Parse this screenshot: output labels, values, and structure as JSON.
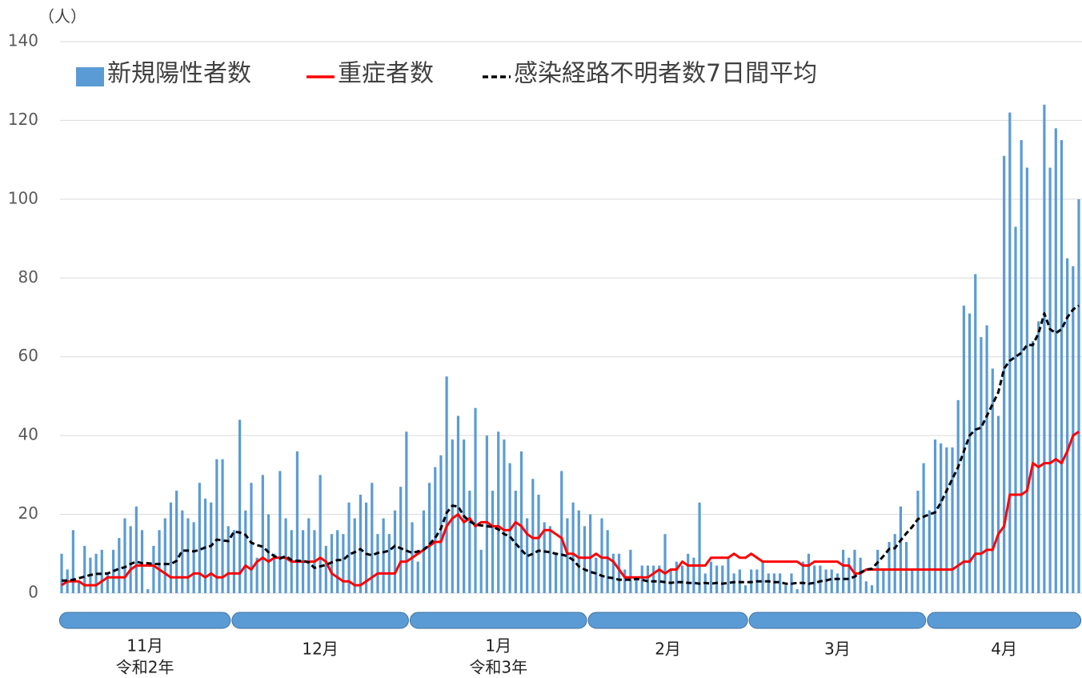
{
  "chart_data": {
    "type": "bar",
    "y_axis_label": "（人）",
    "ylim": [
      0,
      140
    ],
    "yticks": [
      0,
      20,
      40,
      60,
      80,
      100,
      120,
      140
    ],
    "grid": true,
    "legend_position": "top",
    "x_groups": [
      {
        "label": "11月",
        "sublabel": "令和2年"
      },
      {
        "label": "12月"
      },
      {
        "label": "1月",
        "sublabel": "令和3年"
      },
      {
        "label": "2月"
      },
      {
        "label": "3月"
      },
      {
        "label": "4月"
      }
    ],
    "group_color": "#5b9bd5",
    "categories": [
      null,
      null,
      null,
      null,
      null,
      null,
      null,
      null,
      null,
      null,
      null,
      null,
      null,
      null,
      null,
      null,
      null,
      null,
      null,
      null,
      null,
      null,
      null,
      null,
      null,
      null,
      null,
      null,
      null,
      null,
      null,
      null,
      null,
      null,
      null,
      null,
      null,
      null,
      null,
      null,
      null,
      null,
      null,
      null,
      null,
      null,
      null,
      null,
      null,
      null,
      null,
      null,
      null,
      null,
      null,
      null,
      null,
      null,
      null,
      null,
      null,
      null,
      null,
      null,
      null,
      null,
      null,
      null,
      null,
      null,
      null,
      null,
      null,
      null,
      null,
      null,
      null,
      null,
      null,
      null,
      null,
      null,
      null,
      null,
      null,
      null,
      null,
      null,
      null,
      null,
      null,
      null,
      null,
      null,
      null,
      null,
      null,
      null,
      null,
      null,
      null,
      null,
      null,
      null,
      null,
      null,
      null,
      null,
      null,
      null,
      null,
      null,
      null,
      null,
      null,
      null,
      null,
      null,
      null,
      null,
      null,
      null,
      null,
      null,
      null,
      null,
      null,
      null,
      null,
      null,
      null,
      null,
      null,
      null,
      null,
      null,
      null,
      null,
      null,
      null,
      null,
      null,
      null,
      null,
      null,
      null,
      null,
      null,
      null,
      null,
      null,
      null,
      null,
      null,
      null,
      null,
      null,
      null,
      null,
      null,
      null,
      null,
      null,
      null,
      null,
      null,
      null,
      null,
      null,
      null,
      null,
      null,
      null,
      null,
      null,
      null,
      null,
      null
    ],
    "series": [
      {
        "name": "新規陽性者数",
        "type": "bar",
        "color": "#5b9bd5",
        "values": [
          10,
          6,
          16,
          3,
          12,
          9,
          10,
          11,
          5,
          11,
          14,
          19,
          17,
          22,
          16,
          1,
          12,
          16,
          19,
          23,
          26,
          21,
          19,
          18,
          28,
          24,
          23,
          34,
          34,
          17,
          16,
          44,
          21,
          28,
          9,
          30,
          20,
          10,
          31,
          19,
          16,
          36,
          16,
          19,
          16,
          30,
          12,
          15,
          16,
          15,
          23,
          19,
          25,
          23,
          28,
          15,
          19,
          15,
          21,
          27,
          41,
          18,
          8,
          21,
          28,
          32,
          35,
          55,
          39,
          45,
          39,
          26,
          47,
          11,
          40,
          26,
          41,
          39,
          33,
          26,
          36,
          19,
          29,
          25,
          18,
          17,
          10,
          31,
          19,
          23,
          21,
          17,
          20,
          9,
          19,
          16,
          10,
          10,
          6,
          11,
          4,
          7,
          7,
          7,
          7,
          15,
          6,
          8,
          7,
          10,
          9,
          23,
          5,
          8,
          7,
          7,
          9,
          5,
          6,
          2,
          6,
          6,
          8,
          5,
          5,
          5,
          2,
          5,
          1,
          8,
          10,
          7,
          7,
          6,
          6,
          5,
          11,
          9,
          11,
          9,
          3,
          2,
          11,
          6,
          13,
          15,
          22,
          13,
          6,
          26,
          33,
          21,
          39,
          38,
          37,
          37,
          49,
          73,
          71,
          81,
          65,
          68,
          57,
          45,
          111,
          122,
          93,
          115,
          108,
          64,
          69,
          124,
          108,
          118,
          115,
          85,
          83,
          100
        ]
      },
      {
        "name": "重症者数",
        "type": "line",
        "color": "#ff0000",
        "values": [
          2,
          3,
          3,
          3,
          2,
          2,
          2,
          3,
          4,
          4,
          4,
          4,
          6,
          7,
          7,
          7,
          7,
          6,
          5,
          4,
          4,
          4,
          4,
          5,
          5,
          4,
          5,
          4,
          4,
          5,
          5,
          5,
          7,
          6,
          8,
          9,
          8,
          9,
          9,
          9,
          8,
          8,
          8,
          8,
          8,
          9,
          8,
          5,
          4,
          3,
          3,
          2,
          2,
          3,
          4,
          5,
          5,
          5,
          5,
          8,
          8,
          9,
          10,
          11,
          12,
          13,
          13,
          17,
          19,
          20,
          18,
          19,
          17,
          18,
          18,
          17,
          17,
          16,
          16,
          18,
          17,
          15,
          14,
          14,
          16,
          16,
          15,
          14,
          10,
          10,
          9,
          9,
          9,
          10,
          9,
          9,
          8,
          6,
          4,
          4,
          4,
          4,
          4,
          5,
          6,
          5,
          6,
          6,
          8,
          7,
          7,
          7,
          7,
          9,
          9,
          9,
          9,
          10,
          9,
          9,
          10,
          9,
          8,
          8,
          8,
          8,
          8,
          8,
          8,
          7,
          7,
          8,
          8,
          8,
          8,
          8,
          7,
          7,
          5,
          5,
          6,
          6,
          6,
          6,
          6,
          6,
          6,
          6,
          6,
          6,
          6,
          6,
          6,
          6,
          6,
          6,
          7,
          8,
          8,
          10,
          10,
          11,
          11,
          15,
          17,
          25,
          25,
          25,
          26,
          33,
          32,
          33,
          33,
          34,
          33,
          36,
          40,
          41
        ]
      },
      {
        "name": "感染経路不明者数7日間平均",
        "type": "line",
        "dashed": true,
        "color": "#000000",
        "values": [
          3.2,
          3.2,
          3.4,
          3.8,
          4.2,
          4.6,
          4.9,
          4.9,
          5.0,
          5.6,
          6.2,
          6.6,
          7.4,
          8.0,
          7.6,
          7.6,
          7.4,
          7.4,
          7.4,
          7.4,
          8.2,
          10.8,
          10.8,
          10.6,
          11.0,
          11.6,
          12.0,
          13.6,
          13.4,
          13.2,
          15.6,
          15.4,
          14.8,
          12.8,
          12.2,
          11.8,
          10.4,
          9.4,
          8.8,
          9.4,
          8.4,
          8.2,
          8.2,
          7.8,
          6.4,
          6.8,
          7.2,
          7.8,
          8.4,
          8.4,
          9.8,
          10.4,
          11.2,
          10.0,
          9.6,
          10.2,
          10.4,
          10.8,
          12.0,
          11.4,
          10.8,
          10.2,
          10.6,
          11.0,
          12.4,
          14.0,
          16.4,
          20.4,
          22.2,
          22.0,
          19.6,
          18.2,
          17.4,
          17.2,
          17.0,
          16.8,
          16.2,
          15.0,
          14.4,
          12.6,
          11.0,
          9.4,
          10.0,
          10.8,
          10.6,
          10.4,
          10.0,
          9.8,
          9.4,
          8.4,
          6.8,
          6.0,
          5.4,
          5.0,
          4.4,
          4.0,
          3.8,
          3.4,
          3.4,
          3.4,
          3.6,
          3.4,
          3.0,
          3.0,
          3.0,
          2.8,
          2.6,
          2.8,
          2.8,
          2.6,
          2.6,
          2.4,
          2.6,
          2.4,
          2.6,
          2.4,
          2.6,
          2.8,
          2.8,
          2.8,
          2.8,
          3.0,
          3.0,
          3.0,
          2.8,
          2.8,
          2.4,
          2.4,
          2.6,
          2.6,
          2.4,
          2.6,
          3.0,
          3.2,
          3.6,
          3.6,
          3.6,
          3.6,
          4.2,
          5.2,
          6.0,
          6.2,
          7.8,
          9.4,
          11.2,
          11.4,
          13.4,
          15.2,
          16.8,
          18.8,
          19.4,
          20,
          20.5,
          23,
          26,
          29,
          32,
          36,
          40,
          41.5,
          42,
          45,
          48,
          51,
          57,
          59,
          60,
          61,
          63,
          63,
          66,
          71,
          67,
          66,
          67,
          70,
          72,
          73
        ]
      }
    ]
  }
}
